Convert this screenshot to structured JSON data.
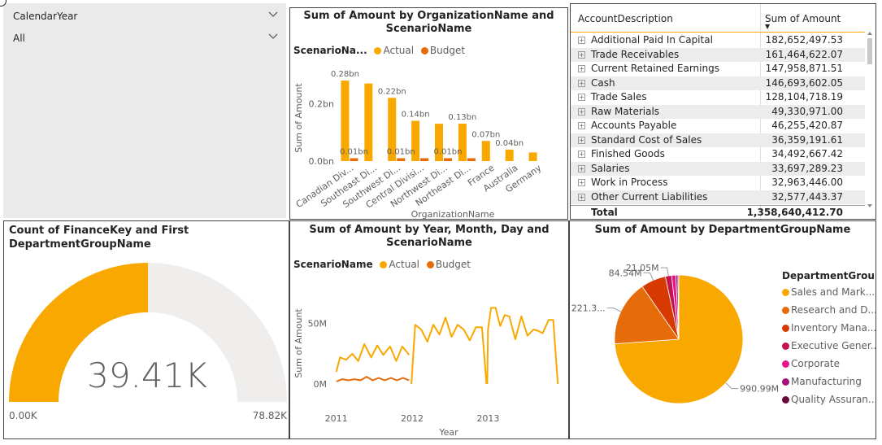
{
  "slicer": {
    "field": "CalendarYear",
    "value": "All"
  },
  "bar_chart": {
    "title_line1": "Sum of Amount by OrganizationName and",
    "title_line2": "ScenarioName",
    "legend_title": "ScenarioNa...",
    "legend_actual": "Actual",
    "legend_budget": "Budget"
  },
  "table": {
    "header_col1": "AccountDescription",
    "header_col2": "Sum of Amount",
    "sort_indicator": "▼",
    "rows": [
      {
        "name": "Additional Paid In Capital",
        "value": "182,652,497.53"
      },
      {
        "name": "Trade Receivables",
        "value": "161,464,622.07"
      },
      {
        "name": "Current Retained Earnings",
        "value": "147,958,871.51"
      },
      {
        "name": "Cash",
        "value": "146,693,602.05"
      },
      {
        "name": "Trade Sales",
        "value": "128,104,718.19"
      },
      {
        "name": "Raw Materials",
        "value": "49,330,971.00"
      },
      {
        "name": "Accounts Payable",
        "value": "46,255,420.87"
      },
      {
        "name": "Standard Cost of Sales",
        "value": "36,359,191.61"
      },
      {
        "name": "Finished Goods",
        "value": "34,492,667.42"
      },
      {
        "name": "Salaries",
        "value": "33,697,289.23"
      },
      {
        "name": "Work in Process",
        "value": "32,963,446.00"
      },
      {
        "name": "Other Current Liabilities",
        "value": "32,577,443.37"
      }
    ],
    "total_label": "Total",
    "total_value": "1,358,640,412.70",
    "expand_glyph": "⊞"
  },
  "gauge": {
    "title_line1": "Count of FinanceKey and First",
    "title_line2": "DepartmentGroupName",
    "value_label": "39.41K",
    "min_label": "0.00K",
    "max_label": "78.82K",
    "fill_fraction": 0.5,
    "fill_color": "#F9A800",
    "track_color": "#EFEEED"
  },
  "line_chart": {
    "title_line1": "Sum of Amount by Year, Month, Day and",
    "title_line2": "ScenarioName",
    "legend_title": "ScenarioName",
    "legend_actual": "Actual",
    "legend_budget": "Budget"
  },
  "pie_chart": {
    "title": "Sum of Amount by DepartmentGroupName",
    "legend_title": "DepartmentGrou..."
  },
  "chart_data": [
    {
      "type": "bar",
      "title": "Sum of Amount by OrganizationName and ScenarioName",
      "xlabel": "OrganizationName",
      "ylabel": "Sum of Amount",
      "categories": [
        "Canadian Div...",
        "Southeast Di...",
        "Southwest Di...",
        "Central Divisi...",
        "Northwest Di...",
        "Northeast Di...",
        "France",
        "Australia",
        "Germany"
      ],
      "series": [
        {
          "name": "Actual",
          "color": "#F9A800",
          "values": [
            0.28,
            0.27,
            0.22,
            0.14,
            0.13,
            0.13,
            0.07,
            0.04,
            0.03
          ]
        },
        {
          "name": "Budget",
          "color": "#E66C0A",
          "values": [
            0.01,
            0.0,
            0.01,
            0.01,
            0.01,
            0.01,
            0.0,
            0.0,
            0.0
          ]
        }
      ],
      "data_labels": [
        {
          "category": 0,
          "series": 0,
          "text": "0.28bn"
        },
        {
          "category": 2,
          "series": 0,
          "text": "0.22bn"
        },
        {
          "category": 3,
          "series": 0,
          "text": "0.14bn"
        },
        {
          "category": 5,
          "series": 0,
          "text": "0.13bn"
        },
        {
          "category": 6,
          "series": 0,
          "text": "0.07bn"
        },
        {
          "category": 7,
          "series": 0,
          "text": "0.04bn"
        },
        {
          "category": 0,
          "series": 1,
          "text": "0.01bn"
        },
        {
          "category": 2,
          "series": 1,
          "text": "0.01bn"
        },
        {
          "category": 4,
          "series": 1,
          "text": "0.01bn"
        }
      ],
      "yticks": [
        {
          "value": 0.0,
          "label": "0.0bn"
        },
        {
          "value": 0.2,
          "label": "0.2bn"
        }
      ],
      "ylim": [
        0,
        0.3
      ],
      "unit": "bn"
    },
    {
      "type": "line",
      "title": "Sum of Amount by Year, Month, Day and ScenarioName",
      "xlabel": "Year",
      "ylabel": "Sum of Amount",
      "xlim": [
        2010.95,
        2013.95
      ],
      "ylim": [
        0,
        70
      ],
      "xticks": [
        {
          "value": 2011,
          "label": "2011"
        },
        {
          "value": 2012,
          "label": "2012"
        },
        {
          "value": 2013,
          "label": "2013"
        }
      ],
      "yticks": [
        {
          "value": 0,
          "label": "0M"
        },
        {
          "value": 50,
          "label": "50M"
        }
      ],
      "series": [
        {
          "name": "Actual",
          "color": "#F9A800",
          "segments": [
            [
              [
                2011.0,
                10
              ],
              [
                2011.05,
                22
              ],
              [
                2011.13,
                20
              ],
              [
                2011.21,
                25
              ],
              [
                2011.29,
                19
              ],
              [
                2011.37,
                33
              ],
              [
                2011.46,
                22
              ],
              [
                2011.54,
                32
              ],
              [
                2011.62,
                24
              ],
              [
                2011.71,
                31
              ],
              [
                2011.79,
                19
              ],
              [
                2011.87,
                31
              ],
              [
                2011.96,
                24
              ]
            ],
            [
              [
                2011.99,
                0
              ],
              [
                2012.04,
                49
              ],
              [
                2012.12,
                45
              ],
              [
                2012.2,
                35
              ],
              [
                2012.28,
                49
              ],
              [
                2012.36,
                41
              ],
              [
                2012.44,
                55
              ],
              [
                2012.52,
                39
              ],
              [
                2012.6,
                49
              ],
              [
                2012.68,
                45
              ],
              [
                2012.76,
                36
              ],
              [
                2012.84,
                47
              ],
              [
                2012.92,
                47
              ],
              [
                2012.98,
                0
              ]
            ],
            [
              [
                2012.99,
                0
              ],
              [
                2013.0,
                45
              ],
              [
                2013.04,
                63
              ],
              [
                2013.1,
                63
              ],
              [
                2013.16,
                48
              ],
              [
                2013.22,
                57
              ],
              [
                2013.28,
                56
              ],
              [
                2013.36,
                37
              ],
              [
                2013.44,
                56
              ],
              [
                2013.52,
                40
              ],
              [
                2013.6,
                45
              ],
              [
                2013.66,
                44
              ],
              [
                2013.72,
                42
              ],
              [
                2013.8,
                53
              ],
              [
                2013.86,
                53
              ],
              [
                2013.92,
                0
              ]
            ]
          ]
        },
        {
          "name": "Budget",
          "color": "#E66C0A",
          "segments": [
            [
              [
                2011.0,
                2
              ],
              [
                2011.08,
                4
              ],
              [
                2011.16,
                3
              ],
              [
                2011.24,
                4
              ],
              [
                2011.32,
                3
              ],
              [
                2011.4,
                6
              ],
              [
                2011.48,
                3
              ],
              [
                2011.56,
                5
              ],
              [
                2011.64,
                3
              ],
              [
                2011.72,
                5
              ],
              [
                2011.8,
                3
              ],
              [
                2011.88,
                5
              ],
              [
                2011.96,
                3
              ]
            ]
          ]
        }
      ]
    },
    {
      "type": "pie",
      "title": "Sum of Amount by DepartmentGroupName",
      "legend_title": "DepartmentGrou...",
      "slices": [
        {
          "label": "Sales and Mark...",
          "value": 990.99,
          "color": "#F9A800",
          "data_label": "990.99M"
        },
        {
          "label": "Research and D...",
          "value": 221.3,
          "color": "#E66C0A",
          "data_label": "221.3..."
        },
        {
          "label": "Inventory Mana...",
          "value": 84.54,
          "color": "#D73A00",
          "data_label": "84.54M"
        },
        {
          "label": "Executive Gener...",
          "value": 21.05,
          "color": "#C4144C",
          "data_label": "21.05M"
        },
        {
          "label": "Corporate",
          "value": 14,
          "color": "#E7158C",
          "data_label": ""
        },
        {
          "label": "Manufacturing",
          "value": 7,
          "color": "#A3147A",
          "data_label": ""
        },
        {
          "label": "Quality Assuran...",
          "value": 3,
          "color": "#6B0A38",
          "data_label": ""
        }
      ]
    }
  ]
}
